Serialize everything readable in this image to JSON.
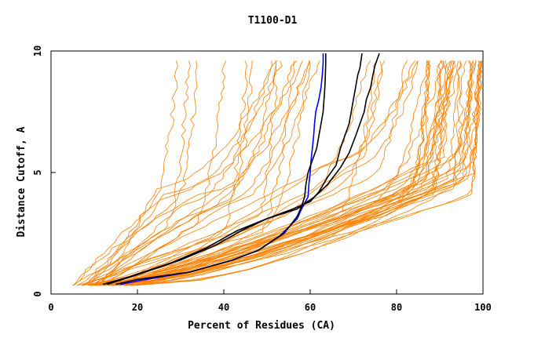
{
  "chart_data": {
    "type": "line",
    "title": "T1100-D1",
    "xlabel": "Percent of Residues (CA)",
    "ylabel": "Distance Cutoff, A",
    "xlim": [
      0,
      100
    ],
    "ylim": [
      0,
      10
    ],
    "x_ticks": [
      "0",
      "20",
      "40",
      "60",
      "80",
      "100"
    ],
    "y_ticks": [
      "0",
      "5",
      "10"
    ],
    "grid": false,
    "colors": {
      "models": "#ff8000",
      "highlight_primary": "#000000",
      "highlight_secondary": "#0000ff",
      "axes": "#000000"
    },
    "model_count": 60,
    "highlighted_series": [
      {
        "color": "#0000ff",
        "points": [
          [
            16,
            0.4
          ],
          [
            22,
            0.6
          ],
          [
            32,
            0.9
          ],
          [
            42,
            1.4
          ],
          [
            48,
            1.8
          ],
          [
            53,
            2.4
          ],
          [
            57,
            3.1
          ],
          [
            58,
            3.5
          ],
          [
            59.5,
            4
          ],
          [
            59.7,
            4.5
          ],
          [
            60,
            5
          ],
          [
            60.2,
            5.5
          ],
          [
            60.5,
            6
          ],
          [
            60.8,
            6.5
          ],
          [
            61,
            7
          ],
          [
            61.3,
            7.5
          ],
          [
            62,
            8
          ],
          [
            62.5,
            8.5
          ],
          [
            62.8,
            9
          ],
          [
            63,
            9.5
          ],
          [
            63,
            9.9
          ]
        ]
      },
      {
        "color": "#000000",
        "points": [
          [
            15,
            0.4
          ],
          [
            20,
            0.6
          ],
          [
            32,
            0.9
          ],
          [
            42,
            1.4
          ],
          [
            48,
            1.8
          ],
          [
            54,
            2.5
          ],
          [
            57,
            3.2
          ],
          [
            58,
            3.6
          ],
          [
            58.7,
            4
          ],
          [
            59,
            4.5
          ],
          [
            59.5,
            5
          ],
          [
            60.5,
            5.5
          ],
          [
            61.5,
            6
          ],
          [
            62,
            6.5
          ],
          [
            62.5,
            7
          ],
          [
            63,
            7.5
          ],
          [
            63.2,
            8
          ],
          [
            63.4,
            8.5
          ],
          [
            63.5,
            9
          ],
          [
            63.6,
            9.5
          ],
          [
            63.6,
            9.9
          ]
        ]
      },
      {
        "color": "#000000",
        "points": [
          [
            12,
            0.4
          ],
          [
            18,
            0.7
          ],
          [
            28,
            1.3
          ],
          [
            36,
            1.9
          ],
          [
            43,
            2.6
          ],
          [
            50,
            3.1
          ],
          [
            56,
            3.5
          ],
          [
            60,
            3.8
          ],
          [
            62,
            4.2
          ],
          [
            64,
            4.8
          ],
          [
            66,
            5.3
          ],
          [
            67,
            6
          ],
          [
            68,
            6.5
          ],
          [
            69,
            7
          ],
          [
            69.5,
            7.5
          ],
          [
            70,
            8
          ],
          [
            70.5,
            8.5
          ],
          [
            71,
            9
          ],
          [
            71.5,
            9.3
          ],
          [
            72,
            9.9
          ]
        ]
      },
      {
        "color": "#000000",
        "points": [
          [
            13,
            0.4
          ],
          [
            20,
            0.8
          ],
          [
            30,
            1.4
          ],
          [
            38,
            2
          ],
          [
            44,
            2.6
          ],
          [
            50,
            3.1
          ],
          [
            57,
            3.5
          ],
          [
            61,
            4
          ],
          [
            64,
            4.5
          ],
          [
            67,
            5.2
          ],
          [
            69,
            5.8
          ],
          [
            70.5,
            6.5
          ],
          [
            71.5,
            7
          ],
          [
            72.5,
            7.5
          ],
          [
            73,
            8
          ],
          [
            74,
            8.5
          ],
          [
            74.5,
            9
          ],
          [
            75,
            9.4
          ],
          [
            76,
            9.9
          ]
        ]
      }
    ]
  }
}
